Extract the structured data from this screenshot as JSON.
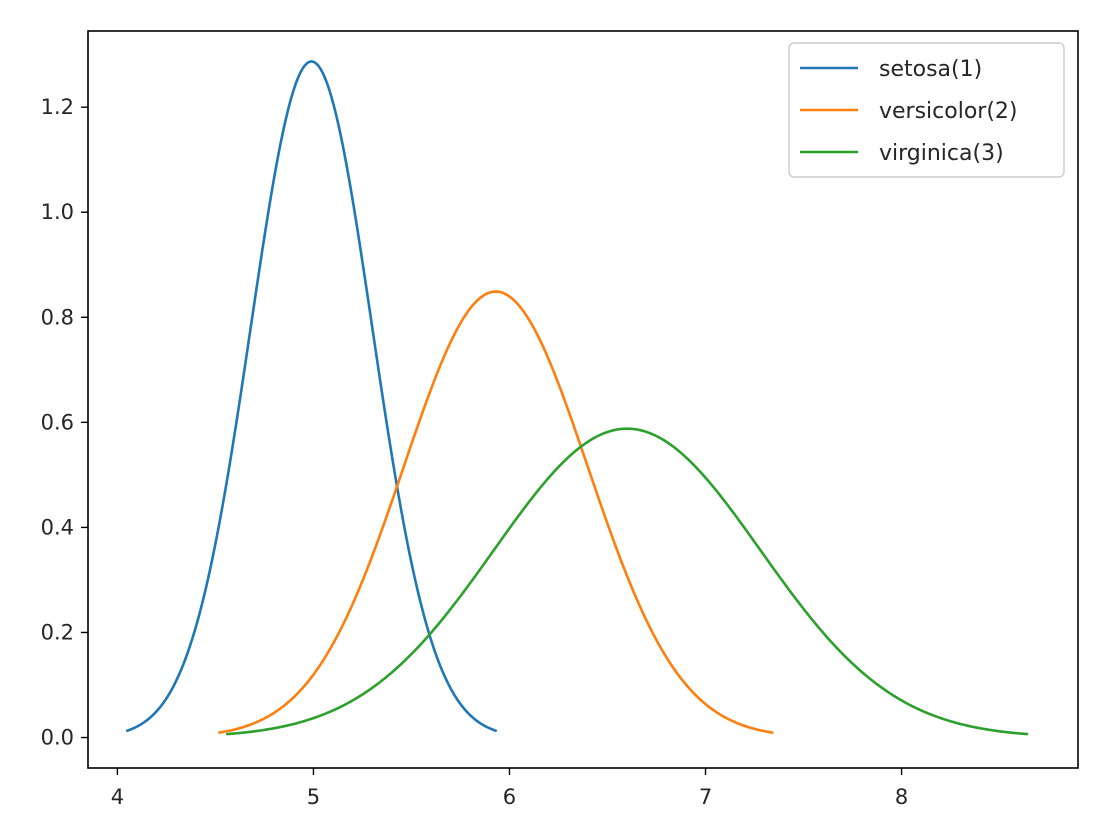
{
  "chart_data": {
    "type": "line",
    "title": "",
    "xlabel": "",
    "ylabel": "",
    "xlim": [
      3.85,
      8.9
    ],
    "ylim": [
      -0.058,
      1.345
    ],
    "xticks": [
      4,
      5,
      6,
      7,
      8
    ],
    "yticks": [
      0.0,
      0.2,
      0.4,
      0.6,
      0.8,
      1.0,
      1.2
    ],
    "grid": false,
    "legend_position": "top-right",
    "series": [
      {
        "name": "setosa(1)",
        "color": "#1f77b4",
        "distribution": "normal",
        "mean": 4.99,
        "std": 0.31,
        "x_range": [
          4.05,
          5.93
        ],
        "peak": 1.287
      },
      {
        "name": "versicolor(2)",
        "color": "#ff7f0e",
        "distribution": "normal",
        "mean": 5.93,
        "std": 0.47,
        "x_range": [
          4.52,
          7.34
        ],
        "peak": 0.849
      },
      {
        "name": "virginica(3)",
        "color": "#2ca02c",
        "distribution": "normal",
        "mean": 6.6,
        "std": 0.68,
        "x_range": [
          4.56,
          8.64
        ],
        "peak": 0.588
      }
    ]
  }
}
